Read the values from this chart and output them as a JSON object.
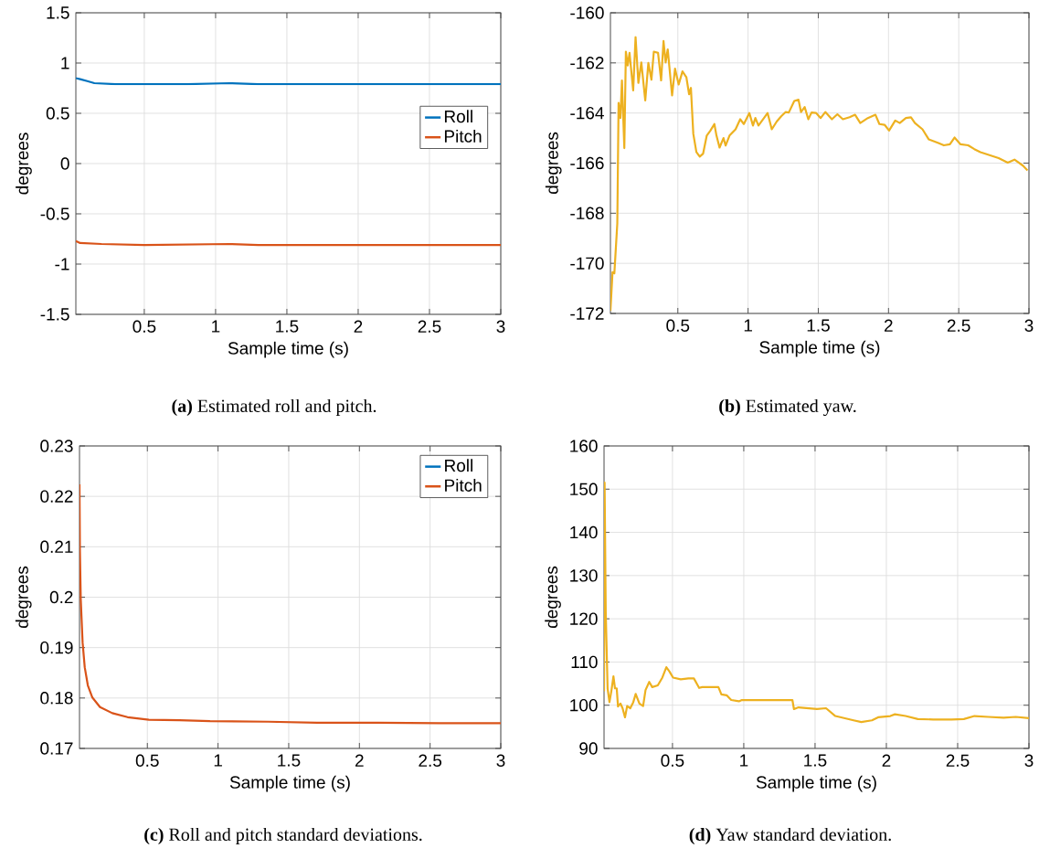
{
  "chart_data": [
    {
      "type": "line",
      "title": "**(a)** Estimated roll and pitch.",
      "xlabel": "Sample time (s)",
      "ylabel": "degrees",
      "xlim": [
        0.02,
        3
      ],
      "ylim": [
        -1.5,
        1.5
      ],
      "xticks": [
        0.5,
        1,
        1.5,
        2,
        2.5,
        3
      ],
      "yticks": [
        -1.5,
        -1,
        -0.5,
        0,
        0.5,
        1,
        1.5
      ],
      "grid": true,
      "legend": "right",
      "series": [
        {
          "name": "Roll",
          "color": "#0072bd",
          "x": [
            0.02,
            0.05,
            0.1,
            0.15,
            0.3,
            0.5,
            0.8,
            1.1,
            1.3,
            1.6,
            2,
            2.5,
            3
          ],
          "values": [
            0.85,
            0.84,
            0.82,
            0.8,
            0.79,
            0.79,
            0.79,
            0.8,
            0.79,
            0.79,
            0.79,
            0.79,
            0.79
          ]
        },
        {
          "name": "Pitch",
          "color": "#d95319",
          "x": [
            0.02,
            0.05,
            0.2,
            0.5,
            1.1,
            1.3,
            2,
            3
          ],
          "values": [
            -0.77,
            -0.79,
            -0.8,
            -0.81,
            -0.8,
            -0.81,
            -0.81,
            -0.81
          ]
        }
      ]
    },
    {
      "type": "line",
      "title": "**(b)** Estimated yaw.",
      "xlabel": "Sample time (s)",
      "ylabel": "degrees",
      "xlim": [
        0.02,
        3
      ],
      "ylim": [
        -172,
        -160
      ],
      "xticks": [
        0.5,
        1,
        1.5,
        2,
        2.5,
        3
      ],
      "yticks": [
        -172,
        -170,
        -168,
        -166,
        -164,
        -162,
        -160
      ],
      "grid": true,
      "series": [
        {
          "color": "#edb120",
          "x": [
            0.02,
            0.035,
            0.048,
            0.069,
            0.078,
            0.091,
            0.102,
            0.119,
            0.13,
            0.143,
            0.156,
            0.182,
            0.199,
            0.219,
            0.24,
            0.268,
            0.29,
            0.312,
            0.329,
            0.359,
            0.381,
            0.398,
            0.413,
            0.428,
            0.459,
            0.48,
            0.506,
            0.533,
            0.561,
            0.58,
            0.593,
            0.61,
            0.632,
            0.656,
            0.68,
            0.706,
            0.732,
            0.76,
            0.775,
            0.797,
            0.825,
            0.84,
            0.868,
            0.911,
            0.944,
            0.97,
            1.009,
            1.035,
            1.052,
            1.074,
            1.117,
            1.139,
            1.169,
            1.204,
            1.236,
            1.268,
            1.29,
            1.329,
            1.359,
            1.377,
            1.403,
            1.429,
            1.452,
            1.485,
            1.517,
            1.55,
            1.597,
            1.636,
            1.675,
            1.723,
            1.762,
            1.799,
            1.853,
            1.907,
            1.935,
            1.972,
            2.004,
            2.048,
            2.08,
            2.124,
            2.16,
            2.188,
            2.242,
            2.286,
            2.351,
            2.394,
            2.437,
            2.47,
            2.513,
            2.567,
            2.611,
            2.654,
            2.719,
            2.784,
            2.849,
            2.897,
            2.957,
            2.99
          ],
          "values": [
            -171.9,
            -170.35,
            -170.4,
            -168.4,
            -163.6,
            -164.2,
            -162.7,
            -165.4,
            -161.55,
            -162.1,
            -161.6,
            -163.1,
            -160.97,
            -162.8,
            -161.98,
            -163.5,
            -162.0,
            -162.67,
            -161.55,
            -161.6,
            -162.7,
            -161.13,
            -161.98,
            -161.46,
            -163.3,
            -162.23,
            -162.86,
            -162.34,
            -162.58,
            -163.25,
            -163.0,
            -164.83,
            -165.56,
            -165.74,
            -165.62,
            -164.9,
            -164.7,
            -164.44,
            -164.9,
            -165.38,
            -165.0,
            -165.3,
            -164.9,
            -164.65,
            -164.25,
            -164.44,
            -164.0,
            -164.5,
            -164.2,
            -164.5,
            -164.17,
            -164.0,
            -164.65,
            -164.34,
            -164.13,
            -163.96,
            -163.98,
            -163.52,
            -163.47,
            -163.96,
            -163.76,
            -164.25,
            -163.98,
            -164.0,
            -164.2,
            -163.96,
            -164.25,
            -164.05,
            -164.25,
            -164.17,
            -164.07,
            -164.4,
            -164.2,
            -164.07,
            -164.44,
            -164.47,
            -164.7,
            -164.3,
            -164.4,
            -164.2,
            -164.17,
            -164.4,
            -164.65,
            -165.05,
            -165.19,
            -165.29,
            -165.25,
            -164.98,
            -165.25,
            -165.29,
            -165.44,
            -165.56,
            -165.68,
            -165.8,
            -165.98,
            -165.86,
            -166.1,
            -166.29
          ]
        }
      ]
    },
    {
      "type": "line",
      "title": "**(c)** Roll and pitch standard deviations.",
      "xlabel": "Sample time (s)",
      "ylabel": "degrees",
      "xlim": [
        0.02,
        3
      ],
      "ylim": [
        0.17,
        0.23
      ],
      "xticks": [
        0.5,
        1,
        1.5,
        2,
        2.5,
        3
      ],
      "yticks": [
        0.17,
        0.18,
        0.19,
        0.2,
        0.21,
        0.22,
        0.23
      ],
      "grid": true,
      "legend": "top right",
      "series": [
        {
          "name": "Roll",
          "color": "#0072bd",
          "values": [
            null,
            null,
            null,
            null,
            null,
            null,
            null,
            null,
            null,
            null,
            null,
            null,
            null,
            null,
            null,
            null,
            null,
            null
          ]
        },
        {
          "name": "Pitch",
          "color": "#d95319",
          "x": [
            0.02,
            0.023,
            0.029,
            0.042,
            0.057,
            0.079,
            0.111,
            0.165,
            0.252,
            0.36,
            0.511,
            0.727,
            0.943,
            1.353,
            1.699,
            2.131,
            2.563,
            3
          ],
          "values": [
            0.2224,
            0.2091,
            0.1995,
            0.191,
            0.1861,
            0.1825,
            0.1801,
            0.1782,
            0.177,
            0.1762,
            0.1757,
            0.1756,
            0.1754,
            0.1753,
            0.1751,
            0.1751,
            0.175,
            0.175
          ]
        }
      ]
    },
    {
      "type": "line",
      "title": "**(d)** Yaw standard deviation.",
      "xlabel": "Sample time (s)",
      "ylabel": "degrees",
      "xlim": [
        0.02,
        3
      ],
      "ylim": [
        90,
        160
      ],
      "xticks": [
        0.5,
        1,
        1.5,
        2,
        2.5,
        3
      ],
      "yticks": [
        90,
        100,
        110,
        120,
        130,
        140,
        150,
        160
      ],
      "grid": true,
      "series": [
        {
          "color": "#edb120",
          "x": [
            0.02,
            0.024,
            0.032,
            0.045,
            0.058,
            0.071,
            0.086,
            0.097,
            0.109,
            0.118,
            0.135,
            0.15,
            0.167,
            0.182,
            0.204,
            0.225,
            0.242,
            0.268,
            0.294,
            0.311,
            0.337,
            0.358,
            0.397,
            0.429,
            0.457,
            0.479,
            0.504,
            0.558,
            0.612,
            0.65,
            0.687,
            0.708,
            0.822,
            0.843,
            0.88,
            0.912,
            0.966,
            0.987,
            1.341,
            1.352,
            1.384,
            1.513,
            1.577,
            1.642,
            1.706,
            1.77,
            1.824,
            1.899,
            1.942,
            2.028,
            2.06,
            2.135,
            2.221,
            2.328,
            2.457,
            2.543,
            2.618,
            2.715,
            2.822,
            2.908,
            3
          ],
          "values": [
            103.2,
            151.5,
            121.5,
            103.9,
            100.7,
            103.2,
            106.7,
            103.9,
            103.9,
            99.7,
            100.4,
            99.3,
            97.2,
            99.8,
            99.3,
            100.7,
            102.6,
            100.4,
            99.8,
            103.5,
            105.4,
            104.2,
            104.6,
            106.4,
            108.8,
            107.8,
            106.4,
            106.0,
            106.2,
            106.2,
            104.0,
            104.2,
            104.2,
            102.5,
            102.3,
            101.2,
            100.9,
            101.2,
            101.2,
            99.1,
            99.5,
            99.1,
            99.3,
            97.5,
            97.0,
            96.5,
            96.1,
            96.5,
            97.2,
            97.5,
            97.9,
            97.5,
            96.8,
            96.7,
            96.7,
            96.8,
            97.5,
            97.3,
            97.1,
            97.3,
            97.0
          ]
        }
      ]
    }
  ]
}
